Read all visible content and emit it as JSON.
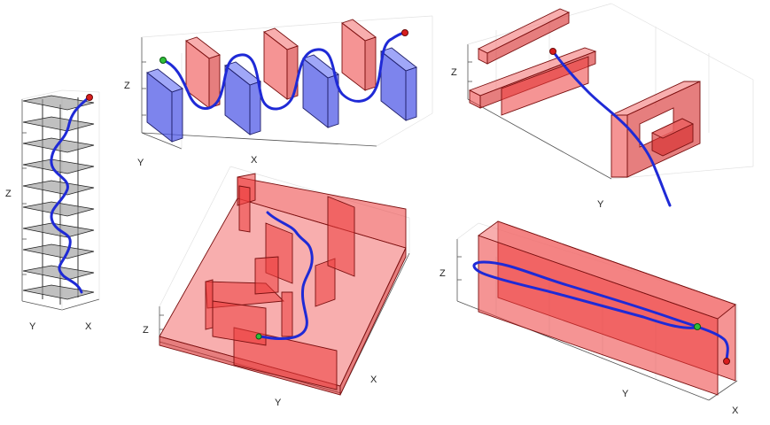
{
  "figure": {
    "background": "#ffffff",
    "obstacle_color": "#ec3c3c",
    "alt_obstacle_color": "#4650e6",
    "floor_color": "#969696",
    "trajectory_color": "#1f2ad6",
    "start_color": "#2fbf3a",
    "goal_color": "#d81e1e"
  },
  "panels": [
    {
      "name": "tower",
      "labels": {
        "x": "X",
        "y": "Y",
        "z": "Z"
      }
    },
    {
      "name": "slalom",
      "labels": {
        "x": "X",
        "y": "Y",
        "z": "Z"
      }
    },
    {
      "name": "window",
      "labels": {
        "x": "",
        "y": "Y",
        "z": "Z"
      }
    },
    {
      "name": "maze",
      "labels": {
        "x": "X",
        "y": "Y",
        "z": "Z"
      }
    },
    {
      "name": "corridor",
      "labels": {
        "x": "X",
        "y": "Y",
        "z": "Z"
      }
    }
  ]
}
